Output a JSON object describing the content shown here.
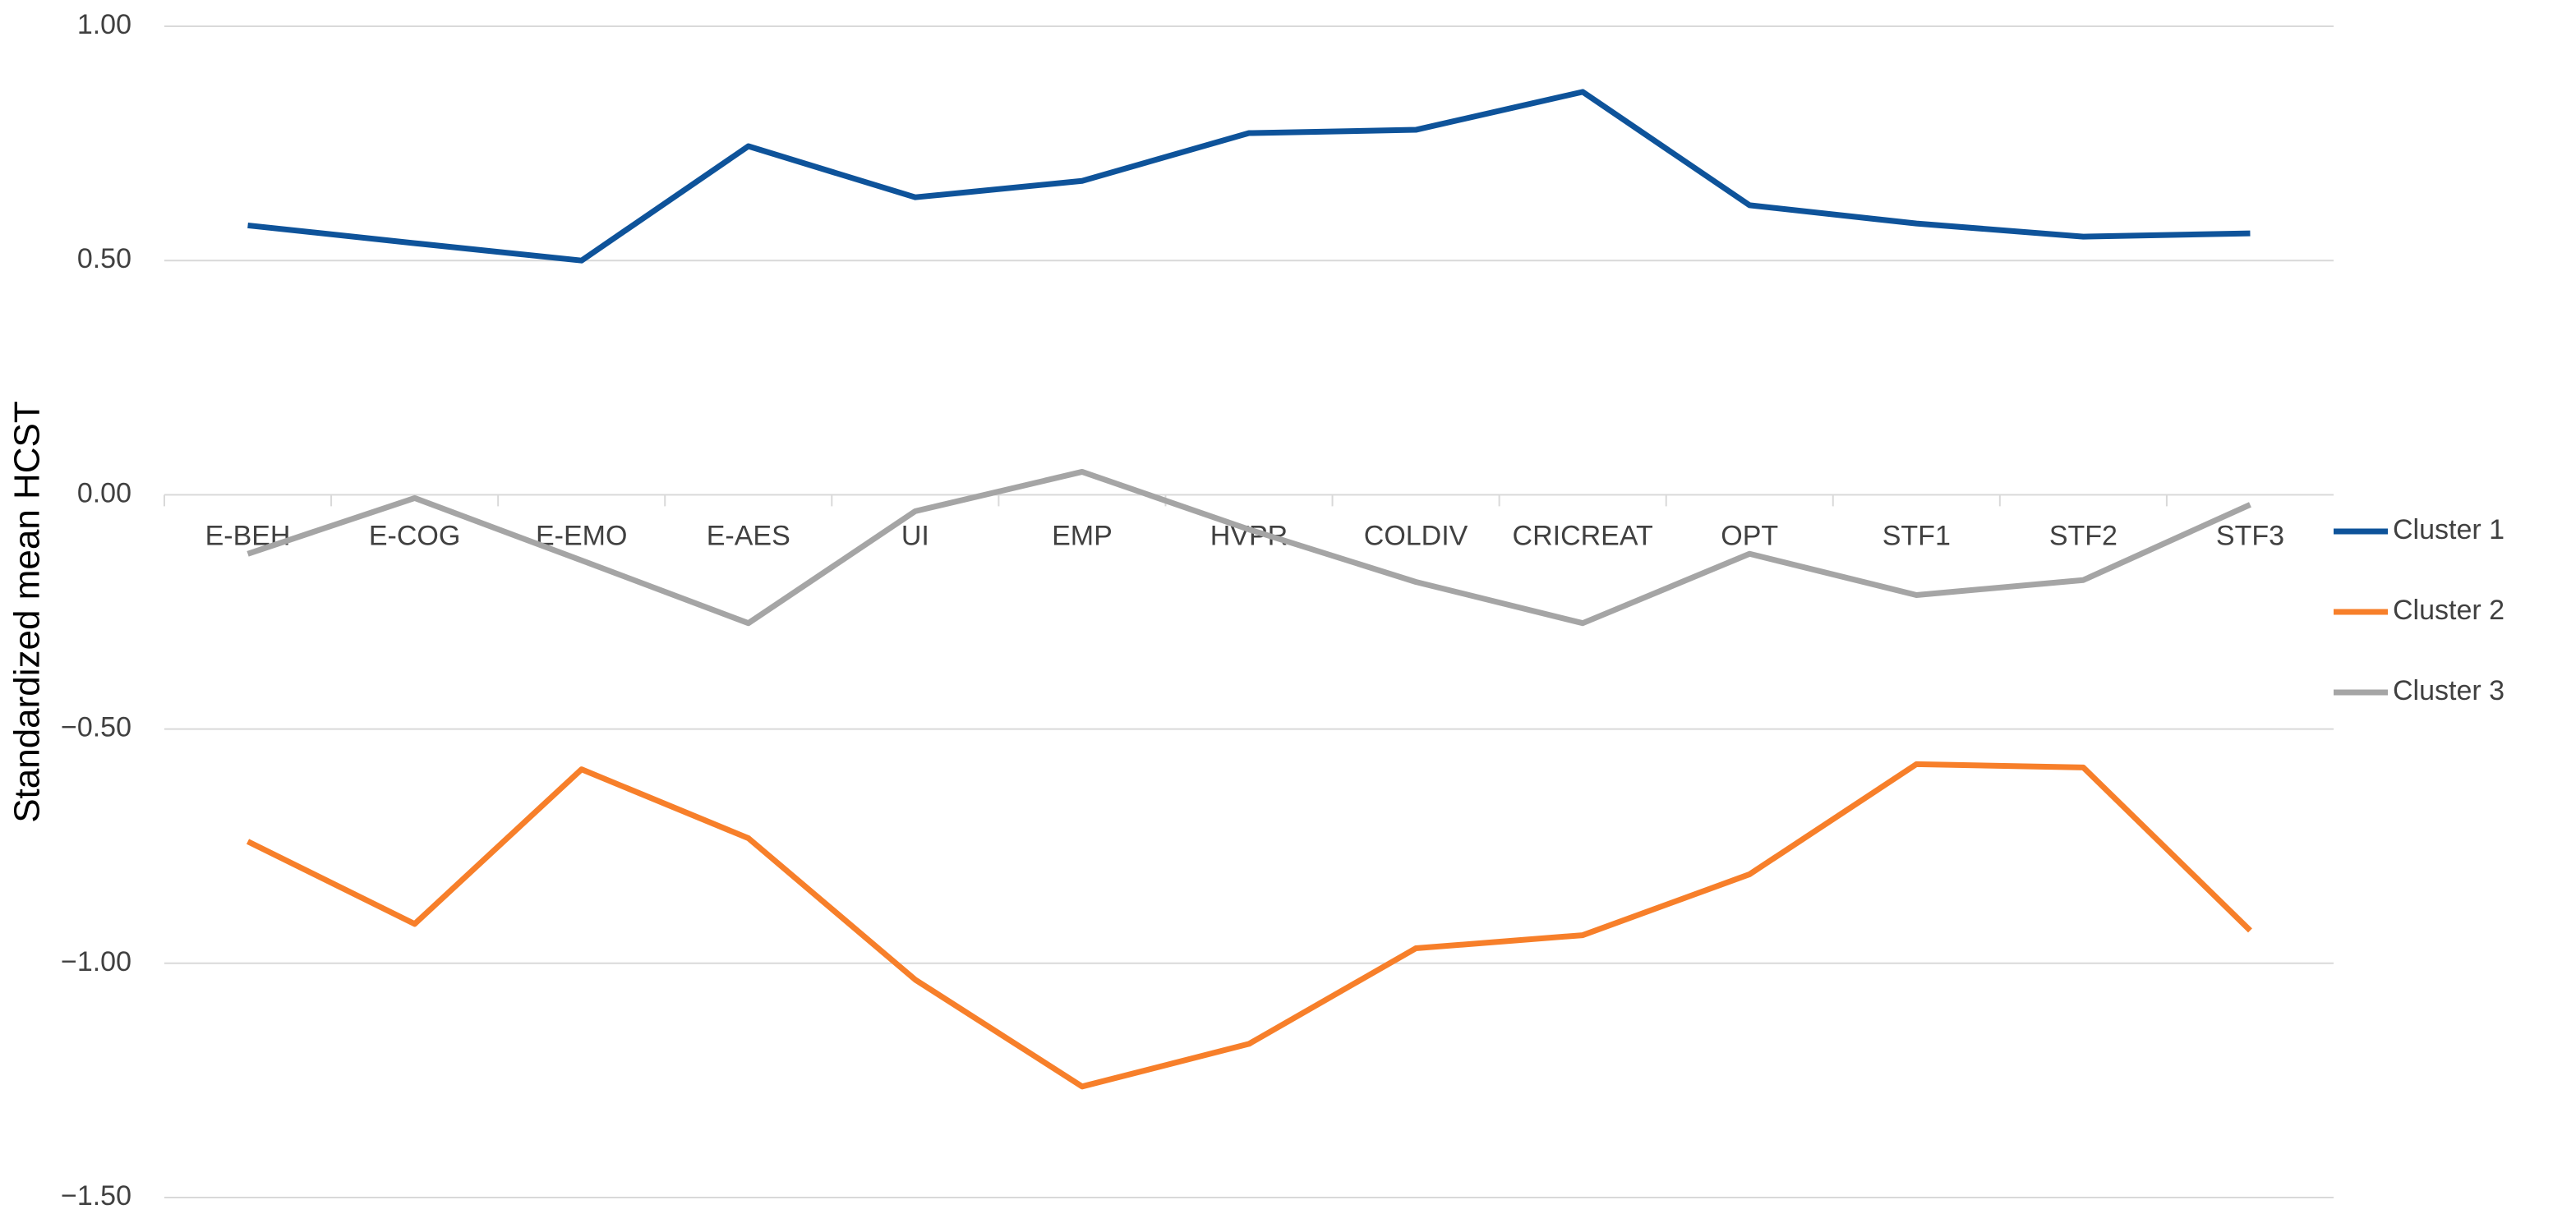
{
  "chart_data": {
    "type": "line",
    "y_label": "Standardized mean HCST",
    "categories": [
      "E-BEH",
      "E-COG",
      "E-EMO",
      "E-AES",
      "UI",
      "EMP",
      "HVPR",
      "COLDIV",
      "CRICREAT",
      "OPT",
      "STF1",
      "STF2",
      "STF3"
    ],
    "series": [
      {
        "name": "Cluster 1",
        "color": "#0e539a",
        "values": [
          0.575,
          0.537,
          0.5,
          0.744,
          0.635,
          0.67,
          0.772,
          0.779,
          0.86,
          0.618,
          0.579,
          0.551,
          0.558
        ]
      },
      {
        "name": "Cluster 2",
        "color": "#f77f2a",
        "values": [
          -0.74,
          -0.916,
          -0.586,
          -0.733,
          -1.035,
          -1.263,
          -1.172,
          -0.968,
          -0.94,
          -0.81,
          -0.575,
          -0.582,
          -0.93
        ]
      },
      {
        "name": "Cluster 3",
        "color": "#a5a5a5",
        "values": [
          -0.126,
          -0.007,
          -0.14,
          -0.274,
          -0.035,
          0.049,
          -0.074,
          -0.186,
          -0.274,
          -0.126,
          -0.214,
          -0.182,
          -0.021
        ]
      }
    ],
    "ylim": [
      -1.5,
      1
    ],
    "yticks": [
      {
        "value": 1,
        "label": "1.00"
      },
      {
        "value": 0.5,
        "label": "0.50"
      },
      {
        "value": 0,
        "label": "0.00"
      },
      {
        "value": -0.5,
        "label": "−0.50"
      },
      {
        "value": -1,
        "label": "−1.00"
      },
      {
        "value": -1.5,
        "label": "−1.50"
      }
    ],
    "grid": true,
    "legend": "right"
  }
}
